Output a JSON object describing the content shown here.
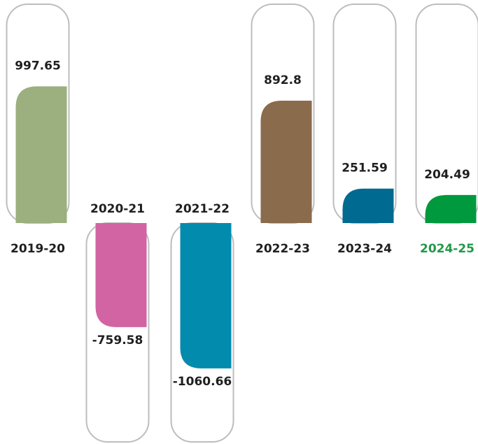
{
  "chart_data": {
    "type": "bar",
    "title": "",
    "xlabel": "",
    "ylabel": "",
    "categories": [
      "2019-20",
      "2020-21",
      "2021-22",
      "2022-23",
      "2023-24",
      "2024-25"
    ],
    "values": [
      997.65,
      -759.58,
      -1060.66,
      892.8,
      251.59,
      204.49
    ],
    "value_labels": [
      "997.65",
      "-759.58",
      "-1060.66",
      "892.8",
      "251.59",
      "204.49"
    ],
    "colors": [
      "#9caf7f",
      "#d264a4",
      "#038bad",
      "#8a6b4c",
      "#006a91",
      "#00993e"
    ],
    "category_label_colors": [
      "#1f1f1f",
      "#1f1f1f",
      "#1f1f1f",
      "#1f1f1f",
      "#1f1f1f",
      "#22984a"
    ],
    "outline_color": "#bdbdbd",
    "grid": false,
    "legend": "none"
  }
}
